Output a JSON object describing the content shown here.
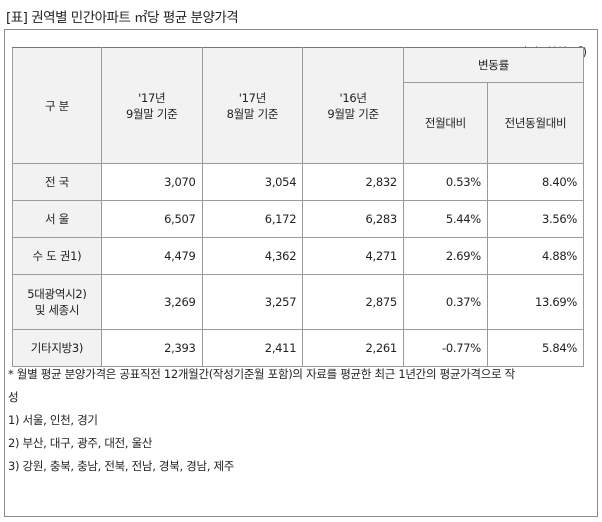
{
  "title": "[표] 권역별 민간아파트 ㎡당 평균 분양가격",
  "unit": "(단위: 천원/㎡)",
  "header": {
    "category": "구 분",
    "col1": [
      "'17년",
      "9월말 기준"
    ],
    "col2": [
      "'17년",
      "8월말 기준"
    ],
    "col3": [
      "'16년",
      "9월말 기준"
    ],
    "change": "변동률",
    "change_mom": "전월대비",
    "change_yoy": "전년동월대비"
  },
  "rows": [
    {
      "label": "전 국",
      "v1": "3,070",
      "v2": "3,054",
      "v3": "2,832",
      "mom": "0.53%",
      "yoy": "8.40%"
    },
    {
      "label": "서 울",
      "v1": "6,507",
      "v2": "6,172",
      "v3": "6,283",
      "mom": "5.44%",
      "yoy": "3.56%"
    },
    {
      "label": "수 도 권1)",
      "v1": "4,479",
      "v2": "4,362",
      "v3": "4,271",
      "mom": "2.69%",
      "yoy": "4.88%"
    },
    {
      "label": "5대광역시2)",
      "label2": "및 세종시",
      "v1": "3,269",
      "v2": "3,257",
      "v3": "2,875",
      "mom": "0.37%",
      "yoy": "13.69%"
    },
    {
      "label": "기타지방3)",
      "v1": "2,393",
      "v2": "2,411",
      "v3": "2,261",
      "mom": "-0.77%",
      "yoy": "5.84%"
    }
  ],
  "notes": {
    "line1": "* 월별 평균 분양가격은 공표직전 12개월간(작성기준월 포함)의 자료를 평균한 최근 1년간의 평균가격으로 작",
    "line1b": "성",
    "n1": "1) 서울, 인천, 경기",
    "n2": "2) 부산, 대구, 광주, 대전, 울산",
    "n3": "3) 강원, 충북, 충남, 전북, 전남, 경북, 경남, 제주"
  }
}
